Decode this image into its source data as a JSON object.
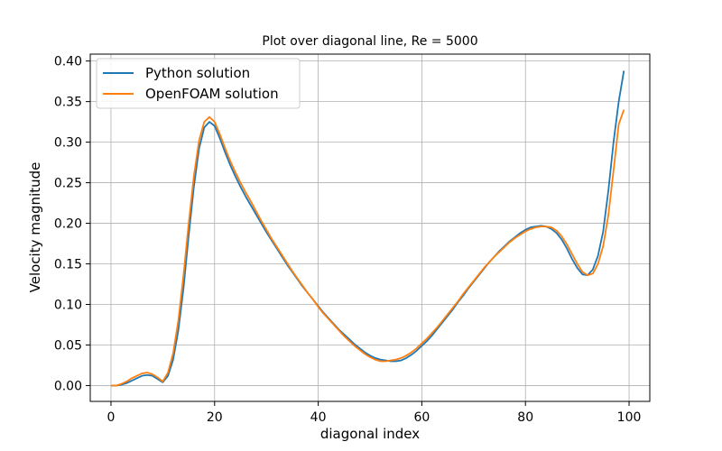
{
  "chart_data": {
    "type": "line",
    "title": "Plot over diagonal line, Re = 5000",
    "xlabel": "diagonal index",
    "ylabel": "Velocity magnitude",
    "xlim": [
      -4,
      104
    ],
    "ylim": [
      -0.0195,
      0.4085
    ],
    "xticks": [
      0,
      20,
      40,
      60,
      80,
      100
    ],
    "yticks": [
      0.0,
      0.05,
      0.1,
      0.15,
      0.2,
      0.25,
      0.3,
      0.35,
      0.4
    ],
    "grid": true,
    "legend_position": "top-left",
    "series": [
      {
        "name": "Python solution",
        "color": "#1f77b4",
        "x": [
          0,
          1,
          2,
          3,
          4,
          5,
          6,
          7,
          8,
          9,
          10,
          11,
          12,
          13,
          14,
          15,
          16,
          17,
          18,
          19,
          20,
          21,
          22,
          23,
          24,
          25,
          26,
          27,
          28,
          29,
          30,
          31,
          32,
          33,
          34,
          35,
          36,
          37,
          38,
          39,
          40,
          41,
          42,
          43,
          44,
          45,
          46,
          47,
          48,
          49,
          50,
          51,
          52,
          53,
          54,
          55,
          56,
          57,
          58,
          59,
          60,
          61,
          62,
          63,
          64,
          65,
          66,
          67,
          68,
          69,
          70,
          71,
          72,
          73,
          74,
          75,
          76,
          77,
          78,
          79,
          80,
          81,
          82,
          83,
          84,
          85,
          86,
          87,
          88,
          89,
          90,
          91,
          92,
          93,
          94,
          95,
          96,
          97,
          98,
          99
        ],
        "y": [
          0.0,
          0.0,
          0.001,
          0.003,
          0.006,
          0.009,
          0.012,
          0.013,
          0.012,
          0.008,
          0.004,
          0.012,
          0.032,
          0.068,
          0.12,
          0.185,
          0.245,
          0.292,
          0.318,
          0.325,
          0.32,
          0.305,
          0.288,
          0.272,
          0.258,
          0.245,
          0.233,
          0.222,
          0.211,
          0.2,
          0.189,
          0.179,
          0.169,
          0.159,
          0.149,
          0.14,
          0.131,
          0.122,
          0.114,
          0.106,
          0.098,
          0.09,
          0.083,
          0.076,
          0.069,
          0.063,
          0.057,
          0.051,
          0.046,
          0.041,
          0.037,
          0.034,
          0.032,
          0.031,
          0.03,
          0.03,
          0.031,
          0.034,
          0.038,
          0.043,
          0.049,
          0.055,
          0.062,
          0.07,
          0.078,
          0.086,
          0.094,
          0.103,
          0.111,
          0.12,
          0.128,
          0.136,
          0.144,
          0.152,
          0.159,
          0.166,
          0.172,
          0.178,
          0.183,
          0.188,
          0.192,
          0.195,
          0.196,
          0.197,
          0.196,
          0.193,
          0.188,
          0.18,
          0.169,
          0.156,
          0.145,
          0.137,
          0.136,
          0.143,
          0.16,
          0.19,
          0.24,
          0.3,
          0.35,
          0.388
        ]
      },
      {
        "name": "OpenFOAM solution",
        "color": "#ff7f0e",
        "x": [
          0,
          1,
          2,
          3,
          4,
          5,
          6,
          7,
          8,
          9,
          10,
          11,
          12,
          13,
          14,
          15,
          16,
          17,
          18,
          19,
          20,
          21,
          22,
          23,
          24,
          25,
          26,
          27,
          28,
          29,
          30,
          31,
          32,
          33,
          34,
          35,
          36,
          37,
          38,
          39,
          40,
          41,
          42,
          43,
          44,
          45,
          46,
          47,
          48,
          49,
          50,
          51,
          52,
          53,
          54,
          55,
          56,
          57,
          58,
          59,
          60,
          61,
          62,
          63,
          64,
          65,
          66,
          67,
          68,
          69,
          70,
          71,
          72,
          73,
          74,
          75,
          76,
          77,
          78,
          79,
          80,
          81,
          82,
          83,
          84,
          85,
          86,
          87,
          88,
          89,
          90,
          91,
          92,
          93,
          94,
          95,
          96,
          97,
          98,
          99
        ],
        "y": [
          0.0,
          0.0,
          0.002,
          0.005,
          0.009,
          0.012,
          0.015,
          0.016,
          0.014,
          0.01,
          0.005,
          0.016,
          0.04,
          0.08,
          0.136,
          0.2,
          0.258,
          0.302,
          0.325,
          0.331,
          0.325,
          0.31,
          0.293,
          0.277,
          0.263,
          0.25,
          0.238,
          0.227,
          0.215,
          0.203,
          0.192,
          0.181,
          0.171,
          0.161,
          0.151,
          0.141,
          0.132,
          0.123,
          0.114,
          0.106,
          0.097,
          0.089,
          0.082,
          0.075,
          0.068,
          0.061,
          0.055,
          0.049,
          0.044,
          0.039,
          0.035,
          0.032,
          0.03,
          0.03,
          0.031,
          0.032,
          0.034,
          0.037,
          0.041,
          0.046,
          0.052,
          0.058,
          0.065,
          0.072,
          0.08,
          0.088,
          0.096,
          0.104,
          0.113,
          0.121,
          0.129,
          0.137,
          0.145,
          0.152,
          0.159,
          0.165,
          0.171,
          0.177,
          0.182,
          0.186,
          0.19,
          0.193,
          0.195,
          0.196,
          0.196,
          0.195,
          0.191,
          0.184,
          0.174,
          0.162,
          0.15,
          0.14,
          0.136,
          0.138,
          0.15,
          0.172,
          0.21,
          0.265,
          0.322,
          0.34
        ]
      }
    ]
  }
}
